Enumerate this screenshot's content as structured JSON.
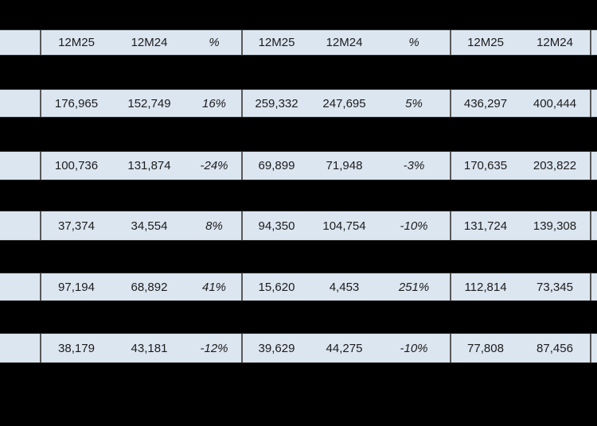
{
  "table": {
    "headers": [
      "12M25",
      "12M24",
      "%",
      "12M25",
      "12M24",
      "%",
      "12M25",
      "12M24"
    ],
    "rows": [
      [
        "176,965",
        "152,749",
        "16%",
        "259,332",
        "247,695",
        "5%",
        "436,297",
        "400,444"
      ],
      [
        "100,736",
        "131,874",
        "-24%",
        "69,899",
        "71,948",
        "-3%",
        "170,635",
        "203,822"
      ],
      [
        "37,374",
        "34,554",
        "8%",
        "94,350",
        "104,754",
        "-10%",
        "131,724",
        "139,308"
      ],
      [
        "97,194",
        "68,892",
        "41%",
        "15,620",
        "4,453",
        "251%",
        "112,814",
        "73,345"
      ],
      [
        "38,179",
        "43,181",
        "-12%",
        "39,629",
        "44,275",
        "-10%",
        "77,808",
        "87,456"
      ]
    ]
  },
  "colors": {
    "row_background": "#dce6f1",
    "group_divider": "#595959",
    "text": "#1c1c1c",
    "redaction": "#000000"
  }
}
